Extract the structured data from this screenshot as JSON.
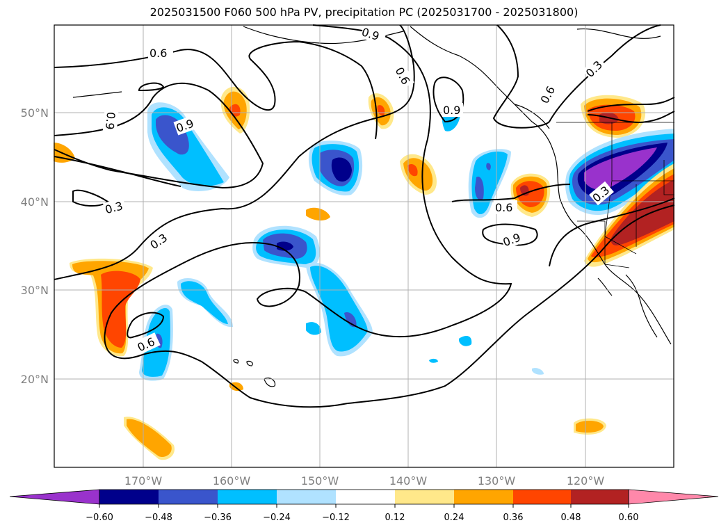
{
  "title": "2025031500 F060 500 hPa PV, precipitation PC (2025031700 - 2025031800)",
  "map": {
    "lon_labels": [
      "170°W",
      "160°W",
      "150°W",
      "140°W",
      "130°W",
      "120°W"
    ],
    "lat_labels": [
      "50°N",
      "40°N",
      "30°N",
      "20°N"
    ],
    "contour_labels": [
      "0.6",
      "0.9",
      "0.6",
      "0.6",
      "0.9",
      "0.3",
      "0.9",
      "0.9",
      "0.3",
      "0.3",
      "0.6",
      "0.9",
      "0.6",
      "0.3"
    ]
  },
  "colorbar": {
    "ticks": [
      "−0.60",
      "−0.48",
      "−0.36",
      "−0.24",
      "−0.12",
      "0.12",
      "0.24",
      "0.36",
      "0.48",
      "0.60"
    ],
    "colors": [
      "#9932cc",
      "#00008b",
      "#3a55cc",
      "#00bfff",
      "#b0e2ff",
      "#ffffff",
      "#ffe88a",
      "#ffa500",
      "#ff4500",
      "#b22222",
      "#ff88aa"
    ]
  }
}
